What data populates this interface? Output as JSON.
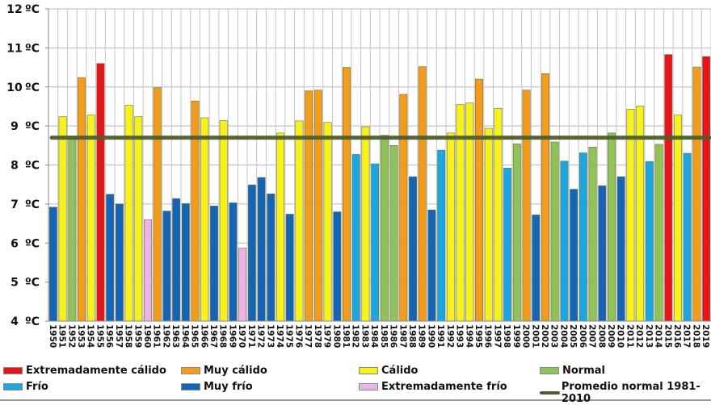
{
  "chart_data": {
    "type": "bar",
    "title": "",
    "xlabel": "",
    "ylabel": "",
    "ylim": [
      4,
      12
    ],
    "yticks": [
      {
        "value": 4,
        "label": "4",
        "unit": "ºC"
      },
      {
        "value": 5,
        "label": "5",
        "unit": "ºC"
      },
      {
        "value": 6,
        "label": "6",
        "unit": "ºC"
      },
      {
        "value": 7,
        "label": "7",
        "unit": "ºC"
      },
      {
        "value": 8,
        "label": "8",
        "unit": "ºC"
      },
      {
        "value": 9,
        "label": "9",
        "unit": "ºC"
      },
      {
        "value": 10,
        "label": "10",
        "unit": "ºC"
      },
      {
        "value": 11,
        "label": "11",
        "unit": "ºC"
      },
      {
        "value": 12,
        "label": "12",
        "unit": "ºC"
      }
    ],
    "grid": true,
    "legend_position": "bottom",
    "reference_line": {
      "name": "Promedio normal 1981-2010",
      "value": 8.7,
      "color": "#4f5e2c"
    },
    "classes": {
      "EC": {
        "label": "Extremadamente cálido",
        "color": "#e8141b"
      },
      "MC": {
        "label": "Muy cálido",
        "color": "#f39c1a"
      },
      "C": {
        "label": "Cálido",
        "color": "#f7f21c"
      },
      "N": {
        "label": "Normal",
        "color": "#8fc257"
      },
      "F": {
        "label": "Frío",
        "color": "#1aa7e0"
      },
      "MF": {
        "label": "Muy frío",
        "color": "#1565b5"
      },
      "EF": {
        "label": "Extremadamente frío",
        "color": "#eeb3e6"
      }
    },
    "categories": [
      "1950",
      "1951",
      "1952",
      "1953",
      "1954",
      "1955",
      "1956",
      "1957",
      "1958",
      "1959",
      "1960",
      "1961",
      "1962",
      "1963",
      "1964",
      "1965",
      "1966",
      "1967",
      "1968",
      "1969",
      "1970",
      "1971",
      "1972",
      "1973",
      "1974",
      "1975",
      "1976",
      "1977",
      "1978",
      "1979",
      "1980",
      "1981",
      "1982",
      "1983",
      "1984",
      "1985",
      "1986",
      "1987",
      "1988",
      "1989",
      "1990",
      "1991",
      "1992",
      "1993",
      "1994",
      "1995",
      "1996",
      "1997",
      "1998",
      "1999",
      "2000",
      "2001",
      "2002",
      "2003",
      "2004",
      "2005",
      "2006",
      "2007",
      "2008",
      "2009",
      "2010",
      "2011",
      "2012",
      "2013",
      "2014",
      "2015",
      "2016",
      "2017",
      "2018",
      "2019"
    ],
    "values": [
      6.92,
      9.24,
      8.7,
      10.24,
      9.28,
      10.6,
      7.25,
      7.0,
      9.53,
      9.24,
      6.6,
      9.98,
      6.82,
      7.14,
      7.01,
      9.64,
      9.21,
      6.95,
      9.14,
      7.03,
      5.87,
      7.49,
      7.68,
      7.26,
      8.82,
      6.74,
      9.13,
      9.9,
      9.92,
      9.09,
      6.8,
      10.5,
      8.27,
      8.98,
      8.03,
      8.76,
      8.5,
      9.81,
      7.7,
      10.52,
      6.85,
      8.38,
      8.82,
      9.55,
      9.59,
      10.2,
      8.94,
      9.45,
      7.92,
      8.54,
      9.92,
      6.72,
      10.34,
      8.59,
      8.1,
      7.38,
      8.31,
      8.46,
      7.47,
      8.82,
      7.7,
      9.43,
      9.51,
      8.09,
      8.53,
      10.83,
      9.28,
      8.3,
      10.51,
      10.78
    ],
    "class_by_year": [
      "MF",
      "C",
      "N",
      "MC",
      "C",
      "EC",
      "MF",
      "MF",
      "C",
      "C",
      "EF",
      "MC",
      "MF",
      "MF",
      "MF",
      "MC",
      "C",
      "MF",
      "C",
      "MF",
      "EF",
      "MF",
      "MF",
      "MF",
      "C",
      "MF",
      "C",
      "MC",
      "MC",
      "C",
      "MF",
      "MC",
      "F",
      "C",
      "F",
      "N",
      "N",
      "MC",
      "MF",
      "MC",
      "MF",
      "F",
      "C",
      "C",
      "C",
      "MC",
      "C",
      "C",
      "F",
      "N",
      "MC",
      "MF",
      "MC",
      "N",
      "F",
      "MF",
      "F",
      "N",
      "MF",
      "N",
      "MF",
      "C",
      "C",
      "F",
      "N",
      "EC",
      "C",
      "F",
      "MC",
      "EC"
    ]
  },
  "legend": {
    "items": [
      {
        "label": "Extremadamente cálido",
        "color": "#e8141b",
        "kind": "swatch"
      },
      {
        "label": "Muy cálido",
        "color": "#f39c1a",
        "kind": "swatch"
      },
      {
        "label": "Cálido",
        "color": "#f7f21c",
        "kind": "swatch"
      },
      {
        "label": "Normal",
        "color": "#8fc257",
        "kind": "swatch"
      },
      {
        "label": "Frío",
        "color": "#1aa7e0",
        "kind": "swatch"
      },
      {
        "label": "Muy frío",
        "color": "#1565b5",
        "kind": "swatch"
      },
      {
        "label": "Extremadamente frío",
        "color": "#eeb3e6",
        "kind": "swatch"
      },
      {
        "label": "Promedio normal 1981-2010",
        "color": "#4f5e2c",
        "kind": "line"
      }
    ]
  }
}
